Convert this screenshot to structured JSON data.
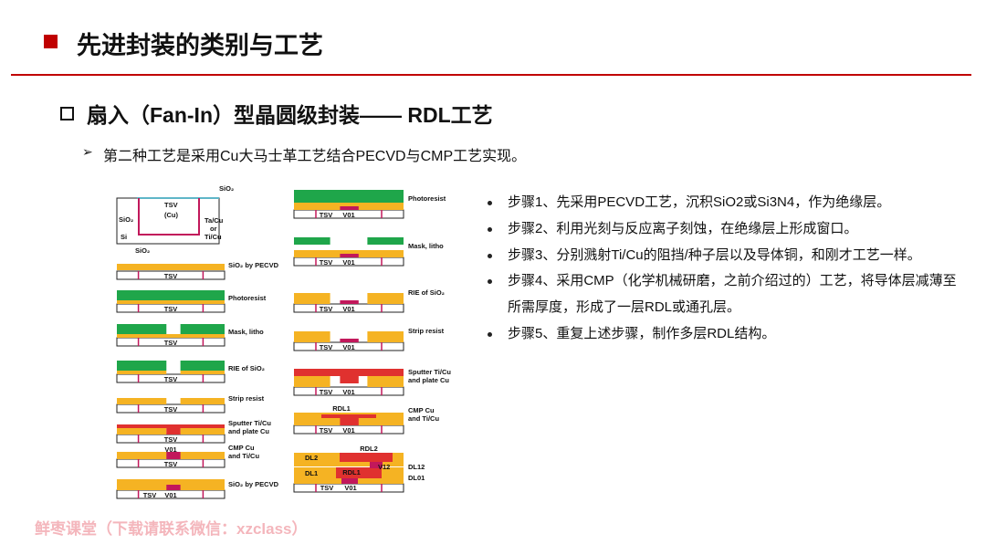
{
  "header": {
    "title": "先进封装的类别与工艺"
  },
  "section": {
    "title": "扇入（Fan-In）型晶圆级封装—— RDL工艺",
    "intro": "第二种工艺是采用Cu大马士革工艺结合PECVD与CMP工艺实现。"
  },
  "figure": {
    "first": {
      "labels": [
        "SiO₂",
        "TSV",
        "(Cu)",
        "SiO₂",
        "Si",
        "Ta/Cu",
        "or",
        "Ti/Cu",
        "SiO₂"
      ]
    },
    "left_steps": [
      {
        "caption": [
          "SiO₂ by PECVD"
        ],
        "labels": [
          "TSV"
        ]
      },
      {
        "caption": [
          "Photoresist"
        ],
        "labels": [
          "TSV"
        ]
      },
      {
        "caption": [
          "Mask, litho"
        ],
        "labels": [
          "TSV"
        ]
      },
      {
        "caption": [
          "RIE of SiO₂"
        ],
        "labels": [
          "TSV"
        ]
      },
      {
        "caption": [
          "Strip resist"
        ],
        "labels": [
          "TSV"
        ]
      },
      {
        "caption": [
          "Sputter Ti/Cu",
          "and plate Cu"
        ],
        "labels": [
          "TSV"
        ]
      },
      {
        "caption": [
          "CMP Cu",
          "and Ti/Cu"
        ],
        "labels": [
          "V01",
          "TSV"
        ]
      },
      {
        "caption": [
          "SiO₂ by PECVD"
        ],
        "labels": [
          "TSV",
          "V01"
        ]
      }
    ],
    "right_steps": [
      {
        "caption": [
          "Photoresist"
        ],
        "labels": [
          "TSV",
          "V01"
        ]
      },
      {
        "caption": [
          "Mask, litho"
        ],
        "labels": [
          "TSV",
          "V01"
        ]
      },
      {
        "caption": [
          "RIE of SiO₂"
        ],
        "labels": [
          "TSV",
          "V01"
        ]
      },
      {
        "caption": [
          "Strip resist"
        ],
        "labels": [
          "TSV",
          "V01"
        ]
      },
      {
        "caption": [
          "Sputter Ti/Cu",
          "and plate Cu"
        ],
        "labels": [
          "TSV",
          "V01"
        ]
      },
      {
        "caption": [
          "CMP Cu",
          "and Ti/Cu"
        ],
        "labels": [
          "RDL1",
          "TSV",
          "V01"
        ]
      }
    ],
    "final": {
      "labels": [
        "DL2",
        "RDL2",
        "V12",
        "DL12",
        "DL1",
        "RDL1",
        "DL01",
        "TSV",
        "V01"
      ]
    }
  },
  "bullets": [
    "步骤1、先采用PECVD工艺，沉积SiO2或Si3N4，作为绝缘层。",
    "步骤2、利用光刻与反应离子刻蚀，在绝缘层上形成窗口。",
    "步骤3、分别溅射Ti/Cu的阻挡/种子层以及导体铜，和刚才工艺一样。",
    "步骤4、采用CMP（化学机械研磨，之前介绍过的）工艺，将导体层减薄至所需厚度，形成了一层RDL或通孔层。",
    "步骤5、重复上述步骤，制作多层RDL结构。"
  ],
  "watermark": "鲜枣课堂（下载请联系微信：xzclass）"
}
